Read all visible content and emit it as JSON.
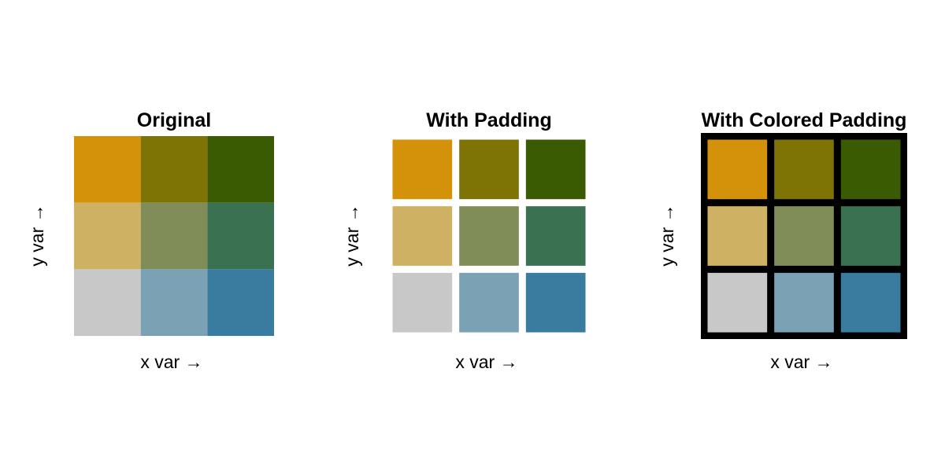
{
  "chart_data": [
    {
      "type": "heatmap",
      "title": "Original",
      "xlabel": "x var →",
      "ylabel": "y var →",
      "padding": "none",
      "rows": [
        [
          "#d4920a",
          "#7e7406",
          "#3b5b03"
        ],
        [
          "#cfb163",
          "#808d58",
          "#3a7150"
        ],
        [
          "#c8c8c8",
          "#7ba1b4",
          "#3a7ca0"
        ]
      ]
    },
    {
      "type": "heatmap",
      "title": "With Padding",
      "xlabel": "x var →",
      "ylabel": "y var →",
      "padding": "white",
      "rows": [
        [
          "#d4920a",
          "#7e7406",
          "#3b5b03"
        ],
        [
          "#cfb163",
          "#808d58",
          "#3a7150"
        ],
        [
          "#c8c8c8",
          "#7ba1b4",
          "#3a7ca0"
        ]
      ]
    },
    {
      "type": "heatmap",
      "title": "With Colored Padding",
      "xlabel": "x var →",
      "ylabel": "y var →",
      "padding": "black",
      "rows": [
        [
          "#d4920a",
          "#7e7406",
          "#3b5b03"
        ],
        [
          "#cfb163",
          "#808d58",
          "#3a7150"
        ],
        [
          "#c8c8c8",
          "#7ba1b4",
          "#3a7ca0"
        ]
      ]
    }
  ]
}
